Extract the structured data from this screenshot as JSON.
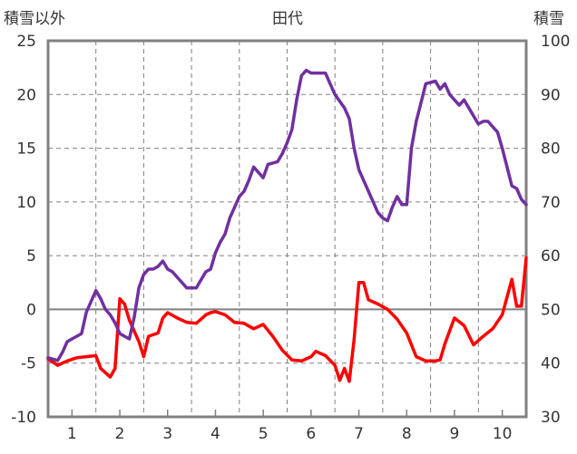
{
  "chart_data": {
    "type": "line",
    "title": "田代",
    "ylabel_left": "積雪以外",
    "ylabel_right": "積雪",
    "x_tick_labels": [
      "1",
      "2",
      "3",
      "4",
      "5",
      "6",
      "7",
      "8",
      "9",
      "10"
    ],
    "x_range": [
      0.5,
      10.5
    ],
    "ylim_left": [
      -10,
      25
    ],
    "ylim_right": [
      30,
      100
    ],
    "yticks_left": [
      "25",
      "20",
      "15",
      "10",
      "5",
      "0",
      "-5",
      "-10"
    ],
    "yticks_right": [
      "100",
      "90",
      "80",
      "70",
      "60",
      "50",
      "40",
      "30"
    ],
    "grid": "vertical dashed at halves, horizontal dashed at ticks",
    "colors": {
      "red_series": "#ff0000",
      "purple_series": "#7030a0",
      "frame": "#808080"
    },
    "series": [
      {
        "axis": "left",
        "color": "#ff0000",
        "points": [
          [
            0.5,
            -4.6
          ],
          [
            0.7,
            -5.2
          ],
          [
            0.9,
            -4.8
          ],
          [
            1.1,
            -4.5
          ],
          [
            1.3,
            -4.4
          ],
          [
            1.5,
            -4.3
          ],
          [
            1.6,
            -5.5
          ],
          [
            1.8,
            -6.3
          ],
          [
            1.9,
            -5.5
          ],
          [
            2.0,
            1.0
          ],
          [
            2.1,
            0.5
          ],
          [
            2.2,
            -1.0
          ],
          [
            2.4,
            -3.0
          ],
          [
            2.5,
            -4.4
          ],
          [
            2.6,
            -2.5
          ],
          [
            2.8,
            -2.2
          ],
          [
            2.9,
            -0.8
          ],
          [
            3.0,
            -0.3
          ],
          [
            3.2,
            -0.8
          ],
          [
            3.4,
            -1.2
          ],
          [
            3.6,
            -1.3
          ],
          [
            3.8,
            -0.5
          ],
          [
            3.9,
            -0.3
          ],
          [
            4.0,
            -0.2
          ],
          [
            4.2,
            -0.5
          ],
          [
            4.4,
            -1.2
          ],
          [
            4.6,
            -1.3
          ],
          [
            4.8,
            -1.8
          ],
          [
            5.0,
            -1.4
          ],
          [
            5.2,
            -2.5
          ],
          [
            5.4,
            -3.8
          ],
          [
            5.6,
            -4.7
          ],
          [
            5.8,
            -4.8
          ],
          [
            6.0,
            -4.4
          ],
          [
            6.1,
            -3.9
          ],
          [
            6.3,
            -4.3
          ],
          [
            6.5,
            -5.2
          ],
          [
            6.6,
            -6.6
          ],
          [
            6.7,
            -5.5
          ],
          [
            6.8,
            -6.7
          ],
          [
            6.9,
            -2.8
          ],
          [
            7.0,
            2.5
          ],
          [
            7.1,
            2.5
          ],
          [
            7.2,
            0.9
          ],
          [
            7.4,
            0.5
          ],
          [
            7.6,
            0.0
          ],
          [
            7.8,
            -0.9
          ],
          [
            8.0,
            -2.2
          ],
          [
            8.2,
            -4.4
          ],
          [
            8.4,
            -4.8
          ],
          [
            8.6,
            -4.8
          ],
          [
            8.7,
            -4.7
          ],
          [
            8.8,
            -3.2
          ],
          [
            9.0,
            -0.8
          ],
          [
            9.2,
            -1.5
          ],
          [
            9.4,
            -3.3
          ],
          [
            9.6,
            -2.5
          ],
          [
            9.8,
            -1.8
          ],
          [
            10.0,
            -0.5
          ],
          [
            10.2,
            2.8
          ],
          [
            10.3,
            0.3
          ],
          [
            10.4,
            0.3
          ],
          [
            10.5,
            4.8
          ]
        ]
      },
      {
        "axis": "right",
        "color": "#7030a0",
        "points": [
          [
            0.5,
            41.0
          ],
          [
            0.7,
            40.5
          ],
          [
            0.8,
            42.0
          ],
          [
            0.9,
            44.0
          ],
          [
            1.0,
            44.5
          ],
          [
            1.1,
            45.0
          ],
          [
            1.2,
            45.5
          ],
          [
            1.3,
            49.5
          ],
          [
            1.5,
            53.5
          ],
          [
            1.6,
            52.0
          ],
          [
            1.7,
            50.0
          ],
          [
            1.8,
            49.0
          ],
          [
            1.9,
            47.5
          ],
          [
            2.0,
            45.5
          ],
          [
            2.1,
            45.0
          ],
          [
            2.2,
            44.5
          ],
          [
            2.3,
            48.5
          ],
          [
            2.4,
            54.0
          ],
          [
            2.5,
            56.5
          ],
          [
            2.6,
            57.5
          ],
          [
            2.7,
            57.5
          ],
          [
            2.8,
            58.0
          ],
          [
            2.9,
            59.0
          ],
          [
            3.0,
            57.5
          ],
          [
            3.1,
            57.0
          ],
          [
            3.2,
            56.0
          ],
          [
            3.4,
            54.0
          ],
          [
            3.6,
            54.0
          ],
          [
            3.7,
            55.5
          ],
          [
            3.8,
            57.0
          ],
          [
            3.9,
            57.5
          ],
          [
            4.0,
            60.5
          ],
          [
            4.1,
            62.5
          ],
          [
            4.2,
            64.0
          ],
          [
            4.3,
            67.0
          ],
          [
            4.5,
            71.0
          ],
          [
            4.6,
            72.0
          ],
          [
            4.7,
            74.0
          ],
          [
            4.8,
            76.5
          ],
          [
            4.9,
            75.5
          ],
          [
            5.0,
            74.5
          ],
          [
            5.1,
            77.0
          ],
          [
            5.3,
            77.5
          ],
          [
            5.4,
            79.0
          ],
          [
            5.5,
            81.0
          ],
          [
            5.6,
            83.5
          ],
          [
            5.7,
            89.0
          ],
          [
            5.8,
            93.5
          ],
          [
            5.9,
            94.5
          ],
          [
            6.0,
            94.0
          ],
          [
            6.2,
            94.0
          ],
          [
            6.3,
            94.0
          ],
          [
            6.4,
            92.0
          ],
          [
            6.5,
            90.0
          ],
          [
            6.7,
            87.5
          ],
          [
            6.8,
            85.5
          ],
          [
            6.9,
            80.0
          ],
          [
            7.0,
            76.0
          ],
          [
            7.2,
            72.0
          ],
          [
            7.4,
            68.0
          ],
          [
            7.5,
            67.0
          ],
          [
            7.6,
            66.5
          ],
          [
            7.7,
            69.0
          ],
          [
            7.8,
            71.0
          ],
          [
            7.9,
            69.5
          ],
          [
            8.0,
            69.5
          ],
          [
            8.1,
            80.0
          ],
          [
            8.2,
            85.0
          ],
          [
            8.3,
            88.5
          ],
          [
            8.4,
            92.0
          ],
          [
            8.6,
            92.5
          ],
          [
            8.7,
            91.0
          ],
          [
            8.8,
            92.0
          ],
          [
            8.9,
            90.0
          ],
          [
            9.0,
            89.0
          ],
          [
            9.1,
            88.0
          ],
          [
            9.2,
            89.0
          ],
          [
            9.4,
            86.0
          ],
          [
            9.5,
            84.5
          ],
          [
            9.6,
            85.0
          ],
          [
            9.7,
            85.0
          ],
          [
            9.8,
            84.0
          ],
          [
            9.9,
            83.0
          ],
          [
            10.0,
            80.0
          ],
          [
            10.1,
            76.5
          ],
          [
            10.2,
            73.0
          ],
          [
            10.3,
            72.5
          ],
          [
            10.4,
            70.5
          ],
          [
            10.5,
            69.5
          ]
        ]
      }
    ]
  }
}
